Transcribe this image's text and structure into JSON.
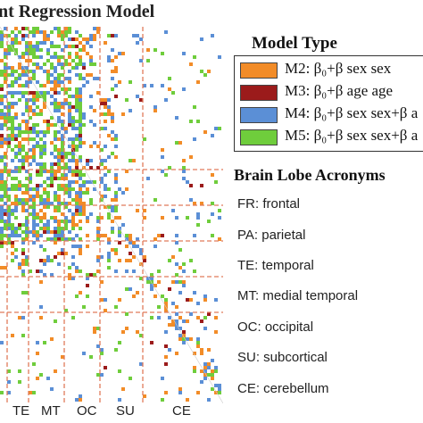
{
  "title": "nt Regression Model",
  "lobes": [
    "TE",
    "MT",
    "OC",
    "SU",
    "CE"
  ],
  "legend": {
    "title": "Model Type",
    "items": [
      {
        "label": "M2: β₀+β sex sex",
        "color": "#f28c28"
      },
      {
        "label": "M3: β₀+β age age",
        "color": "#9b1b1b"
      },
      {
        "label": "M4: β₀+β sex sex+β a",
        "color": "#5b8fd6"
      },
      {
        "label": "M5: β₀+β sex sex+β a",
        "color": "#6fcd3c"
      }
    ]
  },
  "acronyms": {
    "title": "Brain Lobe Acronyms",
    "items": [
      "FR: frontal",
      "PA: parietal",
      "TE: temporal",
      "MT: medial temporal",
      "OC: occipital",
      "SU: subcortical",
      "CE: cerebellum"
    ]
  },
  "colors": {
    "orange": "#f28c28",
    "darkred": "#9b1b1b",
    "blue": "#5b8fd6",
    "green": "#6fcd3c",
    "divider": "#e07b5a"
  }
}
